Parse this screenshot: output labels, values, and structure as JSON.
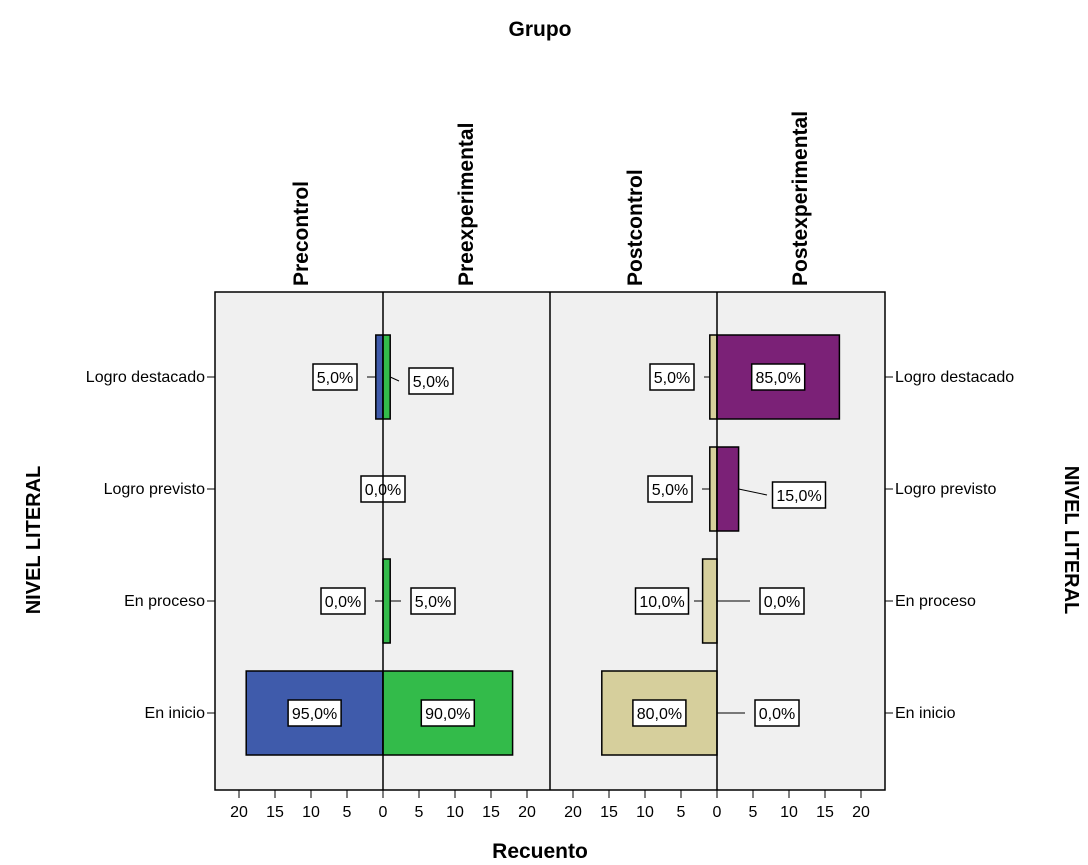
{
  "chart_data": {
    "type": "bar",
    "title": "Grupo",
    "xlabel": "Recuento",
    "ylabel": "NIVEL LITERAL",
    "categories": [
      "Logro destacado",
      "Logro previsto",
      "En proceso",
      "En inicio"
    ],
    "xlim": [
      0,
      20
    ],
    "xticks": [
      "20",
      "15",
      "10",
      "5",
      "0",
      "5",
      "10",
      "15",
      "20"
    ],
    "panels": [
      {
        "series": [
          {
            "name": "Precontrol",
            "color": "#3f5bab",
            "values": [
              1,
              0,
              0,
              19
            ],
            "labels": [
              "5,0%",
              "0,0%",
              "0,0%",
              "95,0%"
            ]
          },
          {
            "name": "Preexperimental",
            "color": "#33bb4a",
            "values": [
              1,
              0,
              1,
              18
            ],
            "labels": [
              "5,0%",
              "",
              "5,0%",
              "90,0%"
            ]
          }
        ]
      },
      {
        "series": [
          {
            "name": "Postcontrol",
            "color": "#d6cf9c",
            "values": [
              1,
              1,
              2,
              16
            ],
            "labels": [
              "5,0%",
              "5,0%",
              "10,0%",
              "80,0%"
            ]
          },
          {
            "name": "Postexperimental",
            "color": "#7b2177",
            "values": [
              17,
              3,
              0,
              0
            ],
            "labels": [
              "85,0%",
              "15,0%",
              "0,0%",
              "0,0%"
            ]
          }
        ]
      }
    ]
  }
}
